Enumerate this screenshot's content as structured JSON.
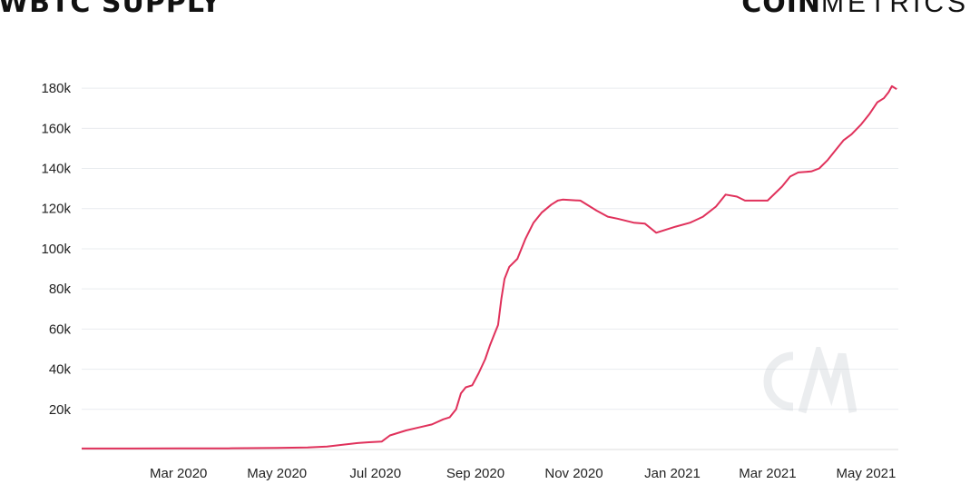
{
  "header": {
    "title": "WBTC SUPPLY",
    "logo_bold": "COIN",
    "logo_light": "METRICS"
  },
  "watermark": {
    "text": "CM",
    "color": "#c8cdd3"
  },
  "colors": {
    "line": "#e0315b",
    "grid": "#e9ecef",
    "axis": "#dddddd"
  },
  "chart_data": {
    "type": "line",
    "title": "WBTC SUPPLY",
    "xlabel": "",
    "ylabel": "",
    "x_tick_labels": [
      "Mar 2020",
      "May 2020",
      "Jul 2020",
      "Sep 2020",
      "Nov 2020",
      "Jan 2021",
      "Mar 2021",
      "May 2021"
    ],
    "x_tick_dates": [
      "2020-03-01",
      "2020-05-01",
      "2020-07-01",
      "2020-09-01",
      "2020-11-01",
      "2021-01-01",
      "2021-03-01",
      "2021-05-01"
    ],
    "y_ticks": [
      20000,
      40000,
      60000,
      80000,
      100000,
      120000,
      140000,
      160000,
      180000
    ],
    "y_tick_labels": [
      "20k",
      "40k",
      "60k",
      "80k",
      "100k",
      "120k",
      "140k",
      "160k",
      "180k"
    ],
    "xlim": [
      "2020-01-01",
      "2021-05-21"
    ],
    "ylim": [
      0,
      190000
    ],
    "grid": true,
    "legend": "none",
    "series": [
      {
        "x": [
          "2020-01-01",
          "2020-02-01",
          "2020-03-01",
          "2020-04-01",
          "2020-05-01",
          "2020-05-20",
          "2020-06-01",
          "2020-06-20",
          "2020-06-27",
          "2020-07-05",
          "2020-07-10",
          "2020-07-20",
          "2020-07-28",
          "2020-08-05",
          "2020-08-12",
          "2020-08-16",
          "2020-08-20",
          "2020-08-23",
          "2020-08-26",
          "2020-08-30",
          "2020-09-03",
          "2020-09-07",
          "2020-09-10",
          "2020-09-13",
          "2020-09-15",
          "2020-09-17",
          "2020-09-19",
          "2020-09-22",
          "2020-09-27",
          "2020-10-02",
          "2020-10-07",
          "2020-10-12",
          "2020-10-18",
          "2020-10-22",
          "2020-10-25",
          "2020-11-05",
          "2020-11-15",
          "2020-11-22",
          "2020-11-28",
          "2020-12-08",
          "2020-12-15",
          "2020-12-22",
          "2020-12-30",
          "2021-01-03",
          "2021-01-12",
          "2021-01-20",
          "2021-01-28",
          "2021-02-03",
          "2021-02-10",
          "2021-02-15",
          "2021-02-20",
          "2021-03-01",
          "2021-03-10",
          "2021-03-15",
          "2021-03-20",
          "2021-03-28",
          "2021-04-02",
          "2021-04-07",
          "2021-04-12",
          "2021-04-17",
          "2021-04-22",
          "2021-04-28",
          "2021-05-03",
          "2021-05-08",
          "2021-05-12",
          "2021-05-15",
          "2021-05-17",
          "2021-05-20"
        ],
        "y": [
          500,
          500,
          550,
          600,
          800,
          1000,
          1500,
          3200,
          3600,
          4000,
          7000,
          9500,
          11000,
          12500,
          15000,
          16000,
          20000,
          28000,
          31000,
          32000,
          38000,
          45000,
          52000,
          58000,
          62000,
          75000,
          85000,
          91000,
          95000,
          105000,
          113000,
          118000,
          122000,
          124000,
          124500,
          124000,
          119000,
          116000,
          115000,
          113000,
          112500,
          108000,
          110000,
          111000,
          113000,
          116000,
          121000,
          127000,
          126000,
          124000,
          124000,
          124000,
          131000,
          136000,
          138000,
          138500,
          140000,
          144000,
          149000,
          154000,
          157000,
          162000,
          167000,
          173000,
          175000,
          178000,
          181000,
          179500
        ]
      }
    ]
  }
}
